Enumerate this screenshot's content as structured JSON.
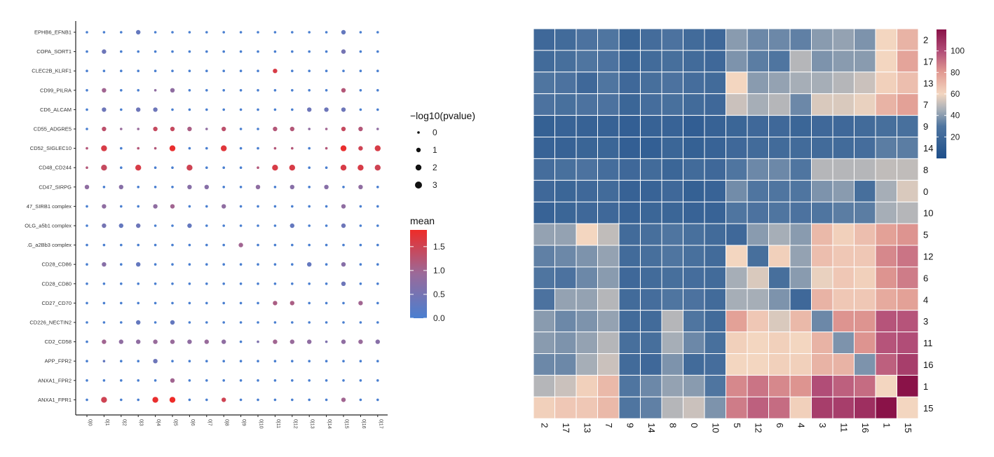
{
  "chart_data": [
    {
      "type": "scatter",
      "subtype": "dot-plot",
      "rows": [
        "EPHB6_EFNB1",
        "COPA_SORT1",
        "CLEC2B_KLRF1",
        "CD99_PILRA",
        "CD6_ALCAM",
        "CD55_ADGRE5",
        "CD52_SIGLEC10",
        "CD48_CD244",
        "CD47_SIRPG",
        "47_SIRB1 complex",
        "OLG_a5b1 complex",
        ".G_a2Bb3 complex",
        "CD28_CD86",
        "CD28_CD80",
        "CD27_CD70",
        "CD226_NECTIN2",
        "CD2_CD58",
        "APP_FPR2",
        "ANXA1_FPR2",
        "ANXA1_FPR1"
      ],
      "columns": [
        "0|0",
        "0|1",
        "0|2",
        "0|3",
        "0|4",
        "0|5",
        "0|6",
        "0|7",
        "0|8",
        "0|9",
        "0|10",
        "0|11",
        "0|12",
        "0|13",
        "0|14",
        "0|15",
        "0|16",
        "0|17"
      ],
      "size_legend": {
        "title": "−log10(pvalue)",
        "values": [
          "0",
          "1",
          "2",
          "3"
        ]
      },
      "color_legend": {
        "title": "mean",
        "ticks": [
          "0.0",
          "0.5",
          "1.0",
          "1.5"
        ],
        "range": [
          0,
          1.85
        ],
        "low": "#4a7fd0",
        "mid": "#9a6a9a",
        "high": "#ee2b28"
      },
      "pvalue_matrix": [
        [
          0,
          0,
          0,
          1,
          0,
          0,
          0,
          0,
          0,
          0,
          0,
          0,
          0,
          0,
          0,
          1,
          0,
          0
        ],
        [
          0,
          1,
          0,
          0,
          0,
          0,
          0,
          0,
          0,
          0,
          0,
          0,
          0,
          0,
          0,
          1,
          0,
          0
        ],
        [
          0,
          0,
          0,
          0,
          0,
          0,
          0,
          0,
          0,
          0,
          0,
          1,
          0,
          0,
          0,
          0,
          0,
          0
        ],
        [
          0,
          1,
          0,
          0,
          0,
          1,
          0,
          0,
          0,
          0,
          0,
          0,
          0,
          0,
          0,
          1,
          0,
          0
        ],
        [
          0,
          1,
          0,
          1,
          1,
          0,
          0,
          0,
          0,
          0,
          0,
          0,
          0,
          1,
          1,
          1,
          0,
          0
        ],
        [
          0,
          1,
          0,
          0,
          1,
          1,
          1,
          0,
          1,
          0,
          0,
          1,
          1,
          0,
          0,
          1,
          1,
          0
        ],
        [
          0,
          2,
          0,
          0,
          0,
          2,
          0,
          0,
          2,
          0,
          0,
          0,
          0,
          0,
          0,
          2,
          1,
          2
        ],
        [
          0,
          2,
          0,
          2,
          0,
          0,
          2,
          0,
          0,
          0,
          0,
          2,
          2,
          0,
          0,
          2,
          2,
          2
        ],
        [
          1,
          0,
          1,
          0,
          0,
          0,
          1,
          1,
          0,
          0,
          1,
          0,
          1,
          0,
          1,
          0,
          1,
          0
        ],
        [
          0,
          1,
          0,
          0,
          1,
          1,
          0,
          0,
          1,
          0,
          0,
          0,
          0,
          0,
          0,
          1,
          0,
          0
        ],
        [
          0,
          1,
          1,
          1,
          0,
          0,
          1,
          0,
          0,
          0,
          0,
          0,
          1,
          0,
          0,
          1,
          0,
          0
        ],
        [
          0,
          0,
          0,
          0,
          0,
          0,
          0,
          0,
          0,
          1,
          0,
          0,
          0,
          0,
          0,
          0,
          0,
          0
        ],
        [
          0,
          1,
          0,
          1,
          0,
          0,
          0,
          0,
          0,
          0,
          0,
          0,
          0,
          1,
          0,
          1,
          0,
          0
        ],
        [
          0,
          0,
          0,
          0,
          0,
          0,
          0,
          0,
          0,
          0,
          0,
          0,
          0,
          0,
          0,
          1,
          0,
          0
        ],
        [
          0,
          0,
          0,
          0,
          0,
          0,
          0,
          0,
          0,
          0,
          0,
          1,
          1,
          0,
          0,
          0,
          1,
          0
        ],
        [
          0,
          0,
          0,
          1,
          0,
          1,
          0,
          0,
          0,
          0,
          0,
          0,
          0,
          0,
          0,
          0,
          0,
          0
        ],
        [
          0,
          1,
          1,
          1,
          1,
          1,
          1,
          1,
          1,
          0,
          0,
          1,
          1,
          1,
          0,
          1,
          1,
          1
        ],
        [
          0,
          0,
          0,
          0,
          1,
          0,
          0,
          0,
          0,
          0,
          0,
          0,
          0,
          0,
          0,
          0,
          0,
          0
        ],
        [
          0,
          0,
          0,
          0,
          0,
          1,
          0,
          0,
          0,
          0,
          0,
          0,
          0,
          0,
          0,
          0,
          0,
          0
        ],
        [
          0,
          2,
          0,
          0,
          2,
          2,
          0,
          0,
          1,
          0,
          0,
          0,
          0,
          0,
          0,
          1,
          0,
          0
        ]
      ],
      "mean_matrix": [
        [
          0,
          0,
          0,
          0.3,
          0,
          0,
          0,
          0,
          0,
          0,
          0,
          0,
          0,
          0,
          0,
          0.3,
          0,
          0
        ],
        [
          0,
          0.4,
          0,
          0,
          0,
          0,
          0,
          0,
          0,
          0,
          0,
          0,
          0,
          0,
          0,
          0.5,
          0,
          0
        ],
        [
          0,
          0,
          0,
          0,
          0,
          0,
          0,
          0,
          0,
          0,
          0,
          1.6,
          0,
          0,
          0,
          0,
          0,
          0
        ],
        [
          0,
          1.0,
          0,
          0,
          0.8,
          0.8,
          0,
          0,
          0,
          0,
          0,
          0,
          0,
          0,
          0,
          1.2,
          0,
          0
        ],
        [
          0,
          0.4,
          0,
          0.4,
          0.4,
          0,
          0,
          0,
          0,
          0,
          0,
          0,
          0,
          0.4,
          0.4,
          0.4,
          0,
          0
        ],
        [
          0,
          1.3,
          0.9,
          0.9,
          1.4,
          1.4,
          1.1,
          0.8,
          1.3,
          0,
          0,
          1.2,
          1.2,
          0.8,
          1.0,
          1.4,
          1.2,
          0.8
        ],
        [
          1.2,
          1.6,
          0,
          1.2,
          1.2,
          1.8,
          0,
          0,
          1.7,
          0,
          0,
          1.2,
          1.2,
          0,
          1.2,
          1.8,
          1.5,
          1.6
        ],
        [
          1.2,
          1.4,
          0,
          1.6,
          0,
          0,
          1.5,
          0,
          0,
          0,
          1.2,
          1.6,
          1.6,
          0,
          0,
          1.6,
          1.6,
          1.5
        ],
        [
          0.8,
          0,
          0.7,
          0,
          0,
          0,
          0.7,
          0.7,
          0,
          0,
          0.8,
          0,
          0.7,
          0,
          0.7,
          0,
          0.8,
          0
        ],
        [
          0,
          0.8,
          0,
          0,
          0.8,
          1.0,
          0,
          0,
          0.8,
          0,
          0,
          0,
          0,
          0,
          0,
          0.8,
          0,
          0
        ],
        [
          0,
          0.5,
          0.3,
          0.4,
          0,
          0,
          0.3,
          0,
          0,
          0,
          0,
          0,
          0.3,
          0,
          0,
          0.4,
          0,
          0
        ],
        [
          0,
          0,
          0,
          0,
          0,
          0,
          0,
          0,
          0,
          1.0,
          0,
          0,
          0,
          0,
          0,
          0,
          0,
          0
        ],
        [
          0,
          0.7,
          0,
          0.3,
          0,
          0,
          0,
          0,
          0,
          0,
          0,
          0,
          0,
          0.3,
          0,
          0.7,
          0,
          0
        ],
        [
          0,
          0,
          0,
          0,
          0,
          0,
          0,
          0,
          0,
          0,
          0,
          0,
          0,
          0,
          0,
          0.4,
          0,
          0
        ],
        [
          0,
          0,
          0,
          0,
          0,
          0,
          0,
          0,
          0,
          0,
          0,
          1.1,
          1.1,
          0,
          0,
          0,
          1.0,
          0
        ],
        [
          0,
          0,
          0,
          0.3,
          0,
          0.3,
          0,
          0,
          0,
          0,
          0,
          0,
          0,
          0,
          0,
          0,
          0,
          0
        ],
        [
          0,
          1.0,
          0.8,
          0.8,
          0.9,
          0.9,
          0.8,
          0.9,
          0.8,
          0,
          0.6,
          1.0,
          0.9,
          0.8,
          0.6,
          0.8,
          0.9,
          0.7
        ],
        [
          0,
          0.3,
          0,
          0,
          0.4,
          0,
          0,
          0,
          0,
          0,
          0,
          0,
          0,
          0,
          0,
          0,
          0,
          0
        ],
        [
          0,
          0,
          0,
          0,
          0,
          1.0,
          0,
          0,
          0,
          0,
          0,
          0,
          0,
          0,
          0,
          0,
          0,
          0
        ],
        [
          0,
          1.5,
          0,
          0,
          1.8,
          1.9,
          0,
          0,
          1.5,
          0,
          0,
          0,
          0,
          0,
          0,
          1.0,
          0,
          0
        ]
      ]
    },
    {
      "type": "heatmap",
      "row_labels": [
        "2",
        "17",
        "13",
        "7",
        "9",
        "14",
        "8",
        "0",
        "10",
        "5",
        "12",
        "6",
        "4",
        "3",
        "11",
        "16",
        "1",
        "15"
      ],
      "col_labels": [
        "2",
        "17",
        "13",
        "7",
        "9",
        "14",
        "8",
        "0",
        "10",
        "5",
        "12",
        "6",
        "4",
        "3",
        "11",
        "16",
        "1",
        "15"
      ],
      "colorbar": {
        "ticks": [
          "20",
          "40",
          "60",
          "80",
          "100"
        ],
        "range": [
          0,
          120
        ]
      },
      "values": [
        [
          20,
          22,
          28,
          30,
          17,
          23,
          28,
          22,
          20,
          40,
          35,
          35,
          33,
          40,
          42,
          38,
          60,
          72
        ],
        [
          22,
          25,
          30,
          28,
          18,
          22,
          25,
          22,
          20,
          38,
          32,
          30,
          48,
          38,
          40,
          40,
          60,
          77
        ],
        [
          30,
          28,
          20,
          30,
          20,
          25,
          28,
          24,
          22,
          60,
          40,
          42,
          45,
          45,
          48,
          52,
          62,
          68
        ],
        [
          28,
          26,
          28,
          28,
          18,
          24,
          26,
          22,
          20,
          52,
          45,
          48,
          35,
          55,
          55,
          58,
          72,
          78
        ],
        [
          14,
          16,
          15,
          15,
          13,
          15,
          16,
          12,
          15,
          18,
          20,
          20,
          18,
          20,
          20,
          22,
          25,
          26
        ],
        [
          16,
          15,
          17,
          18,
          13,
          13,
          18,
          14,
          16,
          20,
          22,
          22,
          22,
          22,
          22,
          24,
          32,
          32
        ],
        [
          24,
          26,
          28,
          24,
          20,
          22,
          18,
          22,
          20,
          30,
          35,
          35,
          30,
          48,
          48,
          48,
          50,
          50
        ],
        [
          20,
          18,
          20,
          22,
          15,
          16,
          20,
          14,
          16,
          36,
          30,
          30,
          30,
          38,
          40,
          25,
          45,
          55
        ],
        [
          16,
          18,
          20,
          20,
          16,
          18,
          18,
          16,
          16,
          30,
          28,
          30,
          28,
          30,
          32,
          32,
          45,
          48
        ],
        [
          42,
          42,
          60,
          50,
          22,
          25,
          30,
          26,
          22,
          20,
          40,
          45,
          40,
          70,
          62,
          68,
          78,
          82
        ],
        [
          33,
          35,
          38,
          42,
          22,
          25,
          30,
          26,
          22,
          60,
          25,
          62,
          42,
          68,
          65,
          65,
          85,
          90
        ],
        [
          30,
          28,
          35,
          40,
          20,
          22,
          25,
          24,
          22,
          45,
          55,
          25,
          40,
          58,
          65,
          62,
          82,
          88
        ],
        [
          28,
          42,
          42,
          48,
          22,
          24,
          30,
          28,
          22,
          45,
          45,
          38,
          20,
          72,
          65,
          65,
          75,
          78
        ],
        [
          40,
          35,
          38,
          42,
          22,
          22,
          48,
          30,
          22,
          78,
          65,
          55,
          70,
          35,
          82,
          82,
          98,
          98
        ],
        [
          40,
          38,
          42,
          48,
          25,
          25,
          45,
          35,
          26,
          62,
          60,
          62,
          60,
          72,
          38,
          82,
          98,
          100
        ],
        [
          35,
          35,
          45,
          52,
          22,
          20,
          38,
          22,
          24,
          60,
          60,
          62,
          62,
          72,
          72,
          38,
          95,
          105
        ],
        [
          48,
          52,
          62,
          70,
          30,
          35,
          42,
          40,
          30,
          85,
          90,
          85,
          82,
          100,
          95,
          92,
          60,
          120
        ],
        [
          62,
          65,
          65,
          70,
          30,
          33,
          48,
          52,
          38,
          88,
          95,
          92,
          62,
          105,
          105,
          110,
          120,
          60
        ]
      ]
    }
  ]
}
